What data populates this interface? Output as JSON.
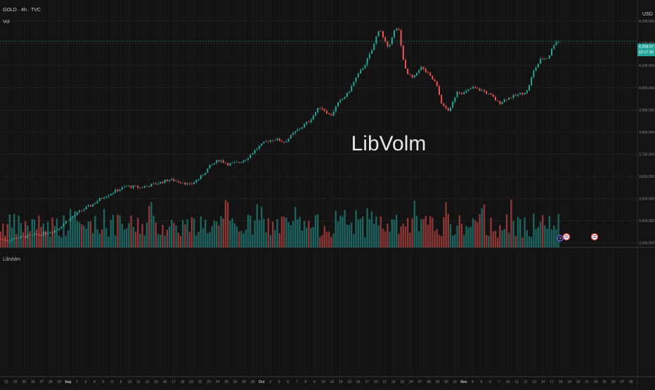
{
  "header": {
    "symbol": "GOLD · 4h · TVC",
    "indicator": "Vol",
    "currency": "USD",
    "pane_label": "LibVolm"
  },
  "watermark": "LibVolm",
  "price_tag": {
    "price": "4,208.97",
    "countdown": "02:17:35"
  },
  "colors": {
    "up": "#26a69a",
    "down": "#ef5350",
    "background": "#131313",
    "grid": "#2a2a2a"
  },
  "chart_data": {
    "type": "candlestick",
    "symbol": "GOLD",
    "timeframe": "4h",
    "source": "TVC",
    "y_axis": {
      "ticks": [
        4300,
        4200,
        4100,
        4000,
        3900,
        3800,
        3700,
        3600,
        3500,
        3400,
        3300
      ],
      "tick_labels": [
        "4,300.000",
        "4,200.000",
        "4,100.000",
        "4,000.000",
        "3,900.000",
        "3,800.000",
        "3,700.000",
        "3,600.000",
        "3,500.000",
        "3,400.000",
        "3,300.000"
      ],
      "range": [
        3280,
        4370
      ]
    },
    "x_axis": {
      "tick_labels": [
        "21",
        "22",
        "25",
        "26",
        "27",
        "28",
        "29",
        "Sep",
        "2",
        "3",
        "4",
        "5",
        "8",
        "9",
        "10",
        "11",
        "12",
        "15",
        "16",
        "17",
        "18",
        "19",
        "22",
        "23",
        "24",
        "25",
        "26",
        "29",
        "30",
        "Oct",
        "2",
        "3",
        "6",
        "7",
        "8",
        "9",
        "10",
        "13",
        "14",
        "15",
        "16",
        "17",
        "20",
        "21",
        "22",
        "23",
        "24",
        "27",
        "28",
        "29",
        "30",
        "31",
        "Nov",
        "4",
        "5",
        "6",
        "7",
        "10",
        "11",
        "12",
        "13",
        "14",
        "17",
        "18",
        "19",
        "20",
        "21",
        "24",
        "25",
        "26",
        "27",
        "28"
      ],
      "bold_labels": [
        "Sep",
        "Oct",
        "Nov"
      ]
    },
    "price_path": [
      [
        0,
        3318
      ],
      [
        10,
        3310
      ],
      [
        22,
        3322
      ],
      [
        40,
        3330
      ],
      [
        60,
        3340
      ],
      [
        80,
        3358
      ],
      [
        95,
        3400
      ],
      [
        115,
        3445
      ],
      [
        130,
        3470
      ],
      [
        148,
        3510
      ],
      [
        165,
        3535
      ],
      [
        180,
        3555
      ],
      [
        200,
        3550
      ],
      [
        220,
        3565
      ],
      [
        240,
        3585
      ],
      [
        260,
        3575
      ],
      [
        270,
        3560
      ],
      [
        285,
        3595
      ],
      [
        300,
        3650
      ],
      [
        312,
        3675
      ],
      [
        325,
        3655
      ],
      [
        340,
        3662
      ],
      [
        352,
        3685
      ],
      [
        365,
        3725
      ],
      [
        380,
        3760
      ],
      [
        392,
        3768
      ],
      [
        405,
        3755
      ],
      [
        420,
        3800
      ],
      [
        440,
        3850
      ],
      [
        455,
        3915
      ],
      [
        465,
        3890
      ],
      [
        470,
        3870
      ],
      [
        480,
        3925
      ],
      [
        495,
        3975
      ],
      [
        505,
        4035
      ],
      [
        520,
        4110
      ],
      [
        530,
        4175
      ],
      [
        540,
        4275
      ],
      [
        545,
        4225
      ],
      [
        552,
        4175
      ],
      [
        560,
        4255
      ],
      [
        567,
        4265
      ],
      [
        572,
        4160
      ],
      [
        578,
        4065
      ],
      [
        588,
        4040
      ],
      [
        598,
        4095
      ],
      [
        608,
        4065
      ],
      [
        620,
        4020
      ],
      [
        630,
        3915
      ],
      [
        640,
        3895
      ],
      [
        650,
        3985
      ],
      [
        660,
        3975
      ],
      [
        672,
        4000
      ],
      [
        688,
        3985
      ],
      [
        700,
        3960
      ],
      [
        710,
        3930
      ],
      [
        720,
        3950
      ],
      [
        735,
        3965
      ],
      [
        750,
        3985
      ],
      [
        760,
        4080
      ],
      [
        770,
        4130
      ],
      [
        780,
        4135
      ],
      [
        790,
        4210
      ],
      [
        797,
        4208.97
      ]
    ],
    "last_price": 4208.97,
    "volume": {
      "type": "bar",
      "relative_range": [
        0,
        1
      ],
      "colors": [
        "#26a69a",
        "#ef5350"
      ]
    }
  }
}
